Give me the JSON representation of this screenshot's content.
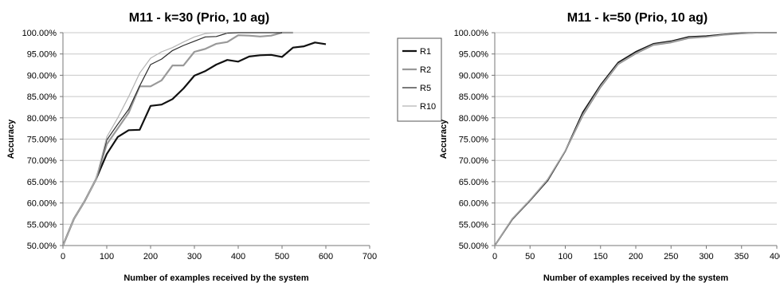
{
  "chart_data": [
    {
      "type": "line",
      "title": "M11 - k=30 (Prio, 10 ag)",
      "xlabel": "Number of examples received by the system",
      "ylabel": "Accuracy",
      "xlim": [
        0,
        700
      ],
      "ylim": [
        0.5,
        1.0
      ],
      "x_ticks": [
        "0",
        "100",
        "200",
        "300",
        "400",
        "500",
        "600",
        "700"
      ],
      "y_ticks": [
        "50.00%",
        "55.00%",
        "60.00%",
        "65.00%",
        "70.00%",
        "75.00%",
        "80.00%",
        "85.00%",
        "90.00%",
        "95.00%",
        "100.00%"
      ],
      "grid": "horizontal",
      "legend_position": "right",
      "series": [
        {
          "name": "R1",
          "color": "#111111",
          "width": 2.2,
          "x": [
            0,
            25,
            50,
            75,
            100,
            125,
            150,
            175,
            200,
            225,
            250,
            275,
            300,
            325,
            350,
            375,
            400,
            425,
            450,
            475,
            500,
            525,
            550,
            575,
            600
          ],
          "y": [
            0.5,
            0.563,
            0.605,
            0.655,
            0.715,
            0.755,
            0.771,
            0.772,
            0.828,
            0.831,
            0.844,
            0.869,
            0.899,
            0.91,
            0.925,
            0.936,
            0.932,
            0.944,
            0.947,
            0.948,
            0.943,
            0.965,
            0.968,
            0.977,
            0.973
          ]
        },
        {
          "name": "R2",
          "color": "#999999",
          "width": 2.2,
          "x": [
            0,
            25,
            50,
            75,
            100,
            125,
            150,
            175,
            200,
            225,
            250,
            275,
            300,
            325,
            350,
            375,
            400,
            425,
            450,
            475,
            500,
            525
          ],
          "y": [
            0.5,
            0.563,
            0.605,
            0.655,
            0.738,
            0.775,
            0.812,
            0.874,
            0.874,
            0.888,
            0.923,
            0.923,
            0.955,
            0.962,
            0.974,
            0.978,
            0.994,
            0.993,
            0.991,
            0.993,
            1.0,
            1.0
          ]
        },
        {
          "name": "R5",
          "color": "#2a2a2a",
          "width": 1.2,
          "x": [
            0,
            25,
            50,
            75,
            100,
            125,
            150,
            175,
            200,
            225,
            250,
            275,
            300,
            325,
            350,
            375,
            400,
            425,
            450,
            475,
            500
          ],
          "y": [
            0.5,
            0.563,
            0.605,
            0.655,
            0.748,
            0.785,
            0.82,
            0.875,
            0.925,
            0.938,
            0.958,
            0.97,
            0.98,
            0.99,
            0.991,
            0.999,
            1.0,
            1.0,
            1.0,
            1.0,
            1.0
          ]
        },
        {
          "name": "R10",
          "color": "#b4b4b4",
          "width": 1.2,
          "x": [
            0,
            25,
            50,
            75,
            100,
            125,
            150,
            175,
            200,
            225,
            250,
            275,
            300,
            325,
            350,
            375
          ],
          "y": [
            0.5,
            0.563,
            0.605,
            0.655,
            0.755,
            0.8,
            0.85,
            0.905,
            0.94,
            0.955,
            0.965,
            0.978,
            0.99,
            0.998,
            1.0,
            1.0
          ]
        }
      ]
    },
    {
      "type": "line",
      "title": "M11 - k=50 (Prio, 10 ag)",
      "xlabel": "Number of examples received by the system",
      "ylabel": "Accuracy",
      "xlim": [
        0,
        400
      ],
      "ylim": [
        0.5,
        1.0
      ],
      "x_ticks": [
        "0",
        "50",
        "100",
        "150",
        "200",
        "250",
        "300",
        "350",
        "400"
      ],
      "y_ticks": [
        "50.00%",
        "55.00%",
        "60.00%",
        "65.00%",
        "70.00%",
        "75.00%",
        "80.00%",
        "85.00%",
        "90.00%",
        "95.00%",
        "100.00%"
      ],
      "grid": "horizontal",
      "series": [
        {
          "color": "#111111",
          "width": 1.8,
          "x": [
            0,
            25,
            50,
            75,
            100,
            125,
            150,
            175,
            200,
            225,
            250,
            275,
            300,
            325,
            350,
            375,
            400
          ],
          "y": [
            0.5,
            0.562,
            0.606,
            0.653,
            0.722,
            0.813,
            0.877,
            0.93,
            0.955,
            0.974,
            0.98,
            0.99,
            0.992,
            0.996,
            0.999,
            1.0,
            1.0
          ]
        },
        {
          "color": "#888888",
          "width": 1.8,
          "x": [
            0,
            25,
            50,
            75,
            100,
            125,
            150,
            175,
            200,
            225,
            250,
            275,
            300,
            325,
            350,
            375,
            400
          ],
          "y": [
            0.5,
            0.563,
            0.607,
            0.655,
            0.722,
            0.806,
            0.872,
            0.926,
            0.951,
            0.971,
            0.977,
            0.987,
            0.99,
            0.995,
            0.998,
            1.0,
            1.0
          ]
        },
        {
          "color": "#444444",
          "width": 1.2,
          "x": [
            0,
            25,
            50,
            75,
            100,
            125,
            150,
            175,
            200,
            225,
            250,
            275,
            300,
            325,
            350,
            375,
            400
          ],
          "y": [
            0.5,
            0.562,
            0.606,
            0.654,
            0.722,
            0.81,
            0.875,
            0.928,
            0.953,
            0.973,
            0.979,
            0.989,
            0.991,
            0.996,
            0.999,
            1.0,
            1.0
          ]
        },
        {
          "color": "#aaaaaa",
          "width": 1.2,
          "x": [
            0,
            25,
            50,
            75,
            100,
            125,
            150,
            175,
            200,
            225,
            250,
            275,
            300,
            325,
            350,
            375,
            400
          ],
          "y": [
            0.5,
            0.563,
            0.607,
            0.655,
            0.723,
            0.808,
            0.874,
            0.927,
            0.952,
            0.972,
            0.978,
            0.988,
            0.99,
            0.995,
            0.998,
            1.0,
            1.0
          ]
        }
      ]
    }
  ]
}
